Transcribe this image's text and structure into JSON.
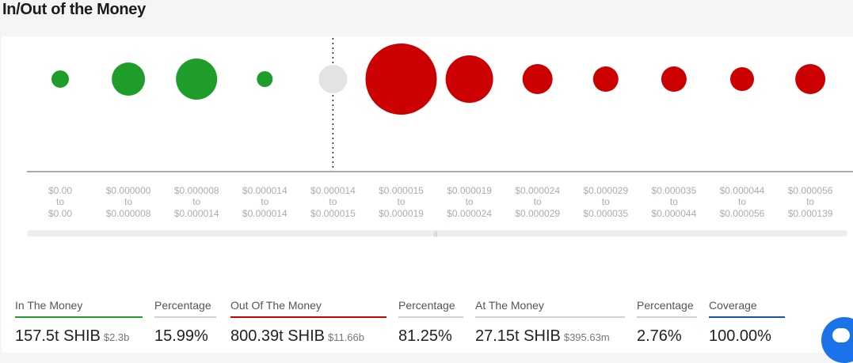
{
  "title": "In/Out of the Money",
  "colors": {
    "in": "#1f9d2a",
    "out": "#cc0000",
    "at": "#e3e3e3",
    "coverage": "#1a4fb5",
    "percentage": "#cfcfcf"
  },
  "chart_data": {
    "type": "scatter",
    "title": "",
    "categories": [
      {
        "from": "$0.00",
        "to": "$0.00"
      },
      {
        "from": "$0.000000",
        "to": "$0.000008"
      },
      {
        "from": "$0.000008",
        "to": "$0.000014"
      },
      {
        "from": "$0.000014",
        "to": "$0.000014"
      },
      {
        "from": "$0.000014",
        "to": "$0.000015"
      },
      {
        "from": "$0.000015",
        "to": "$0.000019"
      },
      {
        "from": "$0.000019",
        "to": "$0.000024"
      },
      {
        "from": "$0.000024",
        "to": "$0.000029"
      },
      {
        "from": "$0.000029",
        "to": "$0.000035"
      },
      {
        "from": "$0.000035",
        "to": "$0.000044"
      },
      {
        "from": "$0.000044",
        "to": "$0.000056"
      },
      {
        "from": "$0.000056",
        "to": "$0.000139"
      }
    ],
    "to_word": "to",
    "bubble_status": [
      "in",
      "in",
      "in",
      "in",
      "at",
      "out",
      "out",
      "out",
      "out",
      "out",
      "out",
      "out"
    ],
    "bubble_size": [
      11,
      21,
      26,
      10,
      18,
      45,
      30,
      19,
      16,
      16,
      15,
      19
    ],
    "current_price_marker_index": 4
  },
  "stats": {
    "in_money": {
      "label": "In The Money",
      "value": "157.5t SHIB",
      "sub": "$2.3b"
    },
    "in_pct": {
      "label": "Percentage",
      "value": "15.99%"
    },
    "out_money": {
      "label": "Out Of The Money",
      "value": "800.39t SHIB",
      "sub": "$11.66b"
    },
    "out_pct": {
      "label": "Percentage",
      "value": "81.25%"
    },
    "at_money": {
      "label": "At The Money",
      "value": "27.15t SHIB",
      "sub": "$395.63m"
    },
    "at_pct": {
      "label": "Percentage",
      "value": "2.76%"
    },
    "coverage": {
      "label": "Coverage",
      "value": "100.00%"
    }
  },
  "scroll_grip": "|||"
}
